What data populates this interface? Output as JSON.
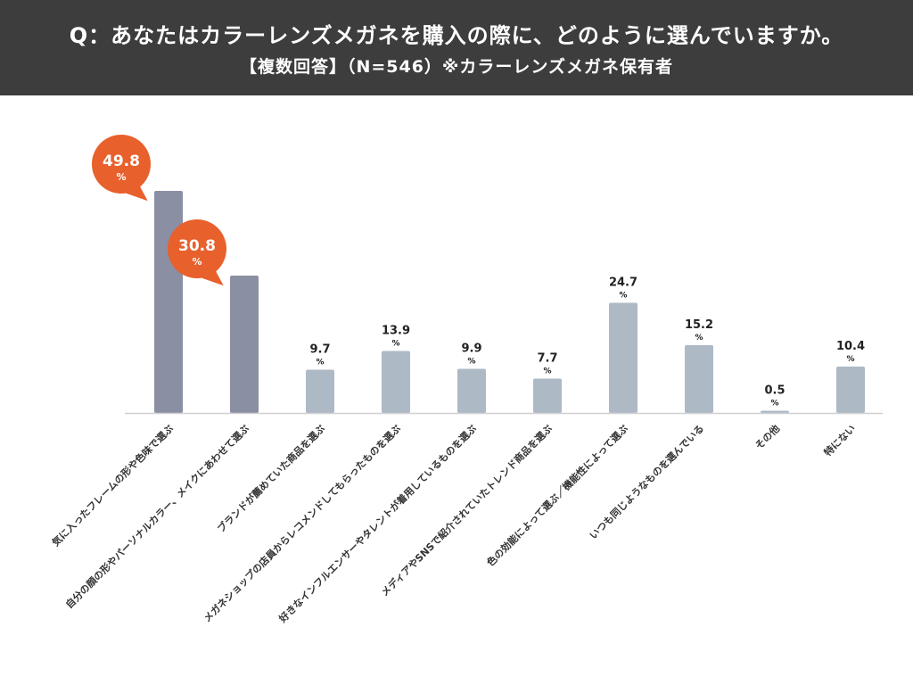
{
  "header": {
    "title": "Q：あなたはカラーレンズメガネを購入の際に、どのように選んでいますか。",
    "subtitle": "【複数回答】（N=546）※カラーレンズメガネ保有者"
  },
  "colors": {
    "header_bg": "#3d3d3d",
    "highlight_bar": "#8b8fa3",
    "normal_bar": "#adb9c5",
    "bubble": "#e8602c",
    "axis": "#d0d0d0"
  },
  "chart_data": {
    "type": "bar",
    "title": "Q：あなたはカラーレンズメガネを購入の際に、どのように選んでいますか。",
    "subtitle": "【複数回答】（N=546）※カラーレンズメガネ保有者",
    "unit": "%",
    "ylim": [
      0,
      55
    ],
    "categories": [
      "気に入ったフレームの形や色味で選ぶ",
      "自分の顔の形やパーソナルカラー、メイクにあわせて選ぶ",
      "ブランドが薦めていた商品を選ぶ",
      "メガネショップの店員からレコメンドしてもらったものを選ぶ",
      "好きなインフルエンサーやタレントが着用しているものを選ぶ",
      "メディアやSNSで紹介されていたトレンド商品を選ぶ",
      "色の効能によって選ぶ／機能性によって選ぶ",
      "いつも同じようなものを選んでいる",
      "その他",
      "特にない"
    ],
    "values": [
      49.8,
      30.8,
      9.7,
      13.9,
      9.9,
      7.7,
      24.7,
      15.2,
      0.5,
      10.4
    ],
    "value_labels": [
      "49.8",
      "30.8",
      "9.7",
      "13.9",
      "9.9",
      "7.7",
      "24.7",
      "15.2",
      "0.5",
      "10.4"
    ],
    "highlighted": [
      true,
      true,
      false,
      false,
      false,
      false,
      false,
      false,
      false,
      false
    ],
    "percent_sign": "%"
  }
}
